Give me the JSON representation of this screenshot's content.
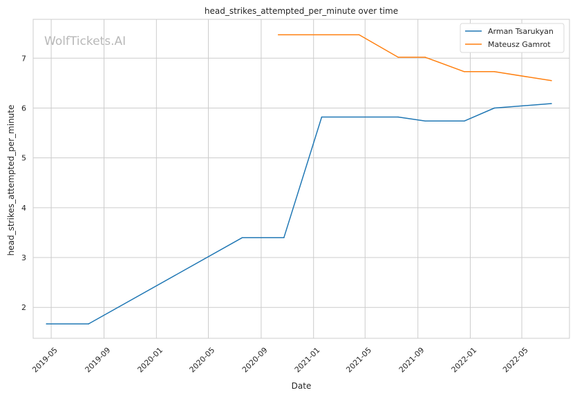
{
  "chart_data": {
    "type": "line",
    "title": "head_strikes_attempted_per_minute over time",
    "xlabel": "Date",
    "ylabel": "head_strikes_attempted_per_minute",
    "watermark": "WolfTickets.AI",
    "x_ticks": [
      "2019-05",
      "2019-09",
      "2020-01",
      "2020-05",
      "2020-09",
      "2021-01",
      "2021-05",
      "2021-09",
      "2022-01",
      "2022-05"
    ],
    "y_ticks": [
      2,
      3,
      4,
      5,
      6,
      7
    ],
    "xlim": [
      "2019-03-20",
      "2022-08-20"
    ],
    "ylim": [
      1.38,
      7.78
    ],
    "grid": true,
    "legend_position": "top-right",
    "colors": {
      "Arman Tsarukyan": "#1f77b4",
      "Mateusz Gamrot": "#ff7f0e"
    },
    "series": [
      {
        "name": "Arman Tsarukyan",
        "points": [
          {
            "x": "2019-04-20",
            "y": 1.67
          },
          {
            "x": "2019-07-27",
            "y": 1.67
          },
          {
            "x": "2020-07-19",
            "y": 3.4
          },
          {
            "x": "2020-10-24",
            "y": 3.4
          },
          {
            "x": "2021-01-20",
            "y": 5.82
          },
          {
            "x": "2021-07-17",
            "y": 5.82
          },
          {
            "x": "2021-09-18",
            "y": 5.74
          },
          {
            "x": "2021-12-18",
            "y": 5.74
          },
          {
            "x": "2022-02-26",
            "y": 6.0
          },
          {
            "x": "2022-07-09",
            "y": 6.09
          }
        ]
      },
      {
        "name": "Mateusz Gamrot",
        "points": [
          {
            "x": "2020-10-11",
            "y": 7.47
          },
          {
            "x": "2021-04-17",
            "y": 7.47
          },
          {
            "x": "2021-07-17",
            "y": 7.02
          },
          {
            "x": "2021-09-18",
            "y": 7.02
          },
          {
            "x": "2021-12-18",
            "y": 6.73
          },
          {
            "x": "2022-02-26",
            "y": 6.73
          },
          {
            "x": "2022-07-09",
            "y": 6.55
          }
        ]
      }
    ]
  }
}
